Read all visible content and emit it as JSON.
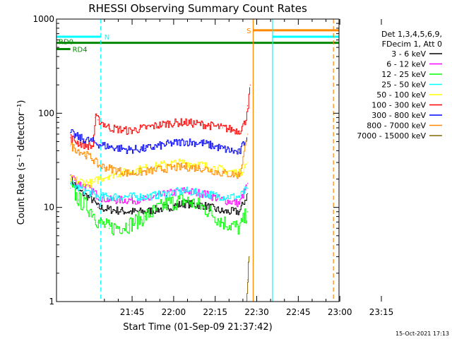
{
  "chart_data": {
    "type": "line",
    "title": "RHESSI Observing Summary Count Rates",
    "xlabel": "Start Time (01-Sep-09 21:37:42)",
    "ylabel": "Count Rate (s⁻¹ detector⁻¹)",
    "yscale": "log",
    "xlim_minutes": [
      -20,
      82
    ],
    "ylim": [
      1,
      1000
    ],
    "x_tick_labels": [
      "21:45",
      "22:00",
      "22:15",
      "22:30",
      "22:45",
      "23:00",
      "23:15"
    ],
    "y_tick_labels": [
      "1",
      "10",
      "100",
      "1000"
    ],
    "legend_title": [
      "Det 1,3,4,5,6,9,",
      "FDecim 1, Att 0"
    ],
    "legend_placement": "right",
    "series": [
      {
        "name": "3 - 6 keV",
        "color": "#000000",
        "x": [
          -15,
          -12,
          -7,
          -5,
          -1,
          6,
          12,
          20,
          26,
          33,
          40,
          46,
          49
        ],
        "y": [
          20,
          15,
          12,
          10,
          9.5,
          9,
          9,
          10,
          11,
          10.5,
          9,
          9,
          14
        ]
      },
      {
        "name": "6 - 12 keV",
        "color": "#ff00ff",
        "x": [
          -15,
          -12,
          -7,
          -5,
          -1,
          6,
          12,
          20,
          26,
          33,
          40,
          46,
          49
        ],
        "y": [
          22,
          18,
          15,
          13,
          12,
          12,
          12,
          14,
          15,
          14,
          12,
          11,
          18
        ]
      },
      {
        "name": "12 - 25 keV",
        "color": "#00ff00",
        "x": [
          -15,
          -12,
          -7,
          -5,
          -1,
          6,
          12,
          20,
          26,
          33,
          40,
          46,
          49
        ],
        "y": [
          16,
          12,
          9,
          7,
          6,
          6.5,
          8,
          11,
          12,
          10,
          7,
          6,
          9
        ]
      },
      {
        "name": "25 - 50 keV",
        "color": "#00ffff",
        "x": [
          -15,
          -12,
          -7,
          -5,
          -1,
          6,
          12,
          20,
          26,
          33,
          40,
          46,
          49
        ],
        "y": [
          18,
          16,
          14,
          13,
          13,
          13,
          13,
          14,
          15,
          14,
          13,
          13,
          16
        ]
      },
      {
        "name": "50 - 100 keV",
        "color": "#ffff00",
        "x": [
          -15,
          -12,
          -7,
          -5,
          -1,
          6,
          12,
          20,
          26,
          33,
          40,
          46,
          49
        ],
        "y": [
          20,
          19,
          18,
          20,
          22,
          24,
          26,
          29,
          30,
          28,
          25,
          23,
          30
        ]
      },
      {
        "name": "100 - 300 keV",
        "color": "#ff0000",
        "x": [
          -15,
          -12,
          -7,
          -6,
          -5,
          -1,
          6,
          12,
          20,
          26,
          33,
          40,
          46,
          48,
          49,
          50
        ],
        "y": [
          55,
          48,
          44,
          90,
          85,
          70,
          65,
          70,
          78,
          80,
          76,
          70,
          65,
          80,
          120,
          200
        ]
      },
      {
        "name": "300 - 800 keV",
        "color": "#0000ff",
        "x": [
          -15,
          -12,
          -7,
          -5,
          -1,
          6,
          12,
          20,
          26,
          33,
          40,
          46,
          49
        ],
        "y": [
          62,
          55,
          50,
          47,
          44,
          41,
          42,
          47,
          50,
          48,
          42,
          38,
          60
        ]
      },
      {
        "name": "800 - 7000 keV",
        "color": "#ff8800",
        "x": [
          -15,
          -12,
          -7,
          -5,
          -1,
          6,
          12,
          20,
          26,
          33,
          40,
          46,
          49
        ],
        "y": [
          45,
          40,
          33,
          28,
          26,
          23,
          24,
          26,
          27,
          26,
          23,
          22,
          60
        ]
      },
      {
        "name": "7000 - 15000 keV",
        "color": "#886600",
        "x": [
          48.5,
          49,
          49.3,
          49.6
        ],
        "y": [
          1,
          1.7,
          2.6,
          3
        ]
      }
    ],
    "flag_bars": [
      {
        "label": "N",
        "color": "#00ffff",
        "x_start": -20,
        "x_end": -4,
        "y": 650
      },
      {
        "label": "RD0",
        "color": "#008800",
        "x_start": -20,
        "x_end": 82,
        "y": 560
      },
      {
        "label": "RD4",
        "color": "#008800",
        "x_start": -20,
        "x_end": -15,
        "y": 480
      },
      {
        "label": "S",
        "color": "#ff8800",
        "x_start": 51,
        "x_end": 82,
        "y": 760
      },
      {
        "label": "",
        "color": "#00ffff",
        "x_start": 58,
        "x_end": 82,
        "y": 650
      }
    ],
    "vertical_markers": [
      {
        "color": "#00ffff",
        "x": -4,
        "style": "dashed"
      },
      {
        "color": "#ff8800",
        "x": 51,
        "style": "solid"
      },
      {
        "color": "#00ffff",
        "x": 58,
        "style": "solid"
      },
      {
        "color": "#ff8800",
        "x": 80,
        "style": "dashed"
      }
    ],
    "grid": false
  },
  "footer": {
    "timestamp": "15-Oct-2021 17:13"
  }
}
